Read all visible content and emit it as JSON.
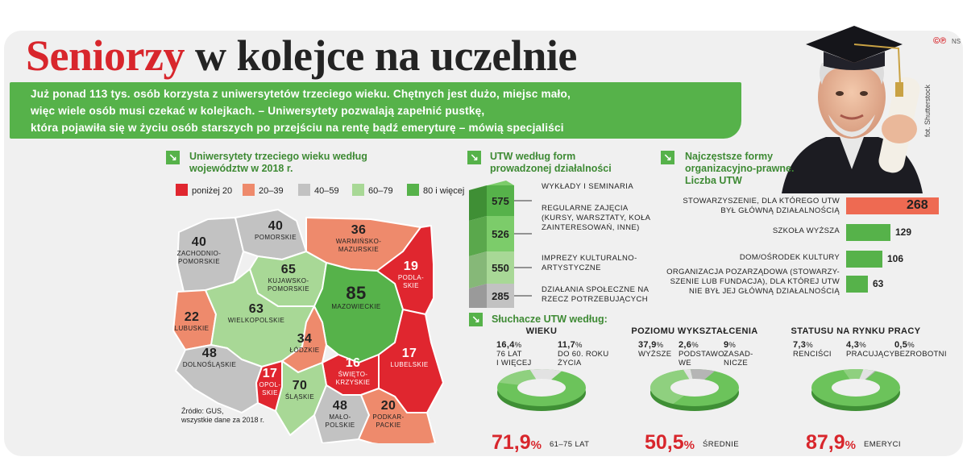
{
  "header": {
    "title_red": "Seniorzy",
    "title_rest": "w kolejce na uczelnie",
    "lead": [
      "Już ponad 113 tys. osób korzysta z uniwersytetów trzeciego wieku. Chętnych jest dużo, miejsc mało,",
      "więc wiele osób musi czekać w kolejkach. – Uniwersytety pozwalają zapełnić pustkę,",
      "która pojawiła się w życiu osób starszych po przejściu na rentę bądź emeryturę – mówią specjaliści"
    ],
    "copyright": "©℗",
    "copyright_tag": "NS",
    "photo_credit": "fot. Shutterstock"
  },
  "map": {
    "title": "Uniwersytety trzeciego wieku według województw w 2018 r.",
    "legend": [
      {
        "label": "poniżej 20",
        "color": "#e0262f"
      },
      {
        "label": "20–39",
        "color": "#ee8a6c"
      },
      {
        "label": "40–59",
        "color": "#c2c2c2"
      },
      {
        "label": "60–79",
        "color": "#a8d896"
      },
      {
        "label": "80 i więcej",
        "color": "#56b24a"
      }
    ],
    "source": [
      "Źródło: GUS,",
      "wszystkie dane za 2018 r."
    ]
  },
  "chart_data": [
    {
      "type": "choropleth",
      "title": "Uniwersytety trzeciego wieku według województw w 2018 r.",
      "regions": [
        {
          "name": "zachodnio-pomorskie",
          "value": 40
        },
        {
          "name": "pomorskie",
          "value": 40
        },
        {
          "name": "warmińsko-mazurskie",
          "value": 36
        },
        {
          "name": "podlaskie",
          "value": 19
        },
        {
          "name": "kujawsko-pomorskie",
          "value": 65
        },
        {
          "name": "lubuskie",
          "value": 22
        },
        {
          "name": "wielkopolskie",
          "value": 63
        },
        {
          "name": "mazowieckie",
          "value": 85
        },
        {
          "name": "łódzkie",
          "value": 34
        },
        {
          "name": "dolnośląskie",
          "value": 48
        },
        {
          "name": "lubelskie",
          "value": 17
        },
        {
          "name": "świętokrzyskie",
          "value": 16
        },
        {
          "name": "opolskie",
          "value": 17
        },
        {
          "name": "śląskie",
          "value": 70
        },
        {
          "name": "małopolskie",
          "value": 48
        },
        {
          "name": "podkarpackie",
          "value": 20
        }
      ]
    },
    {
      "type": "bar",
      "title": "UTW według form prowadzonej działalności",
      "categories": [
        "wykłady i seminaria",
        "regularne zajęcia (kursy, warsztaty, koła zainteresowań, inne)",
        "imprezy kulturalno-artystyczne",
        "działania społeczne na rzecz potrzebujących"
      ],
      "values": [
        575,
        526,
        550,
        285
      ]
    },
    {
      "type": "bar",
      "title": "Najczęstsze formy organizacyjno-prawne. Liczba UTW",
      "categories": [
        "stowarzyszenie, dla którego UTW był główną działalnością",
        "szkoła wyższa",
        "dom/ośrodek kultury",
        "organizacja pozarządowa (stowarzyszenie lub fundacja), dla której UTW nie był jej główną działalnością"
      ],
      "values": [
        268,
        129,
        106,
        63
      ],
      "colors": [
        "#ee6a52",
        "#56b24a",
        "#56b24a",
        "#56b24a"
      ]
    },
    {
      "type": "pie",
      "title": "Wieku",
      "slices": [
        {
          "label": "61–75 lat",
          "value": 71.9
        },
        {
          "label": "76 lat i więcej",
          "value": 16.4
        },
        {
          "label": "do 60. roku życia",
          "value": 11.7
        }
      ]
    },
    {
      "type": "pie",
      "title": "Poziomu wykształcenia",
      "slices": [
        {
          "label": "średnie",
          "value": 50.5
        },
        {
          "label": "wyższe",
          "value": 37.9
        },
        {
          "label": "podstawowe",
          "value": 2.6
        },
        {
          "label": "zasadnicze",
          "value": 9
        }
      ]
    },
    {
      "type": "pie",
      "title": "Statusu na rynku pracy",
      "slices": [
        {
          "label": "emeryci",
          "value": 87.9
        },
        {
          "label": "renciści",
          "value": 7.3
        },
        {
          "label": "pracujący",
          "value": 4.3
        },
        {
          "label": "bezrobotni",
          "value": 0.5
        }
      ]
    }
  ],
  "utw_forms": {
    "title": "UTW według form prowadzonej działalności",
    "items": [
      {
        "value": "575",
        "label": "wykłady i seminaria"
      },
      {
        "value": "526",
        "label": "regularne zajęcia (kursy, warsztaty, koła zainteresowań, inne)"
      },
      {
        "value": "550",
        "label": "imprezy kulturalno-artystyczne"
      },
      {
        "value": "285",
        "label": "działania społeczne na rzecz potrzebujących"
      }
    ]
  },
  "legal_forms": {
    "title": "Najczęstsze formy organizacyjno-prawne. Liczba UTW"
  },
  "students": {
    "title": "Słuchacze UTW według:",
    "donuts": [
      {
        "title": "wieku",
        "big_value": "71,9",
        "big_unit": "%",
        "big_caption": "61–75 lat",
        "labels": [
          {
            "value": "16,4",
            "unit": "%",
            "text": [
              "76 lat",
              "i więcej"
            ]
          },
          {
            "value": "11,7",
            "unit": "%",
            "text": [
              "do 60. roku",
              "życia"
            ]
          }
        ]
      },
      {
        "title": "poziomu wykształcenia",
        "big_value": "50,5",
        "big_unit": "%",
        "big_caption": "średnie",
        "labels": [
          {
            "value": "37,9",
            "unit": "%",
            "text": [
              "wyższe"
            ]
          },
          {
            "value": "2,6",
            "unit": "%",
            "text": [
              "podstawo-",
              "we"
            ]
          },
          {
            "value": "9",
            "unit": "%",
            "text": [
              "zasad-",
              "nicze"
            ]
          }
        ]
      },
      {
        "title": "statusu na rynku pracy",
        "big_value": "87,9",
        "big_unit": "%",
        "big_caption": "emeryci",
        "labels": [
          {
            "value": "7,3",
            "unit": "%",
            "text": [
              "renciści"
            ]
          },
          {
            "value": "4,3",
            "unit": "%",
            "text": [
              "pracujący"
            ]
          },
          {
            "value": "0,5",
            "unit": "%",
            "text": [
              "bezrobotni"
            ]
          }
        ]
      }
    ]
  }
}
